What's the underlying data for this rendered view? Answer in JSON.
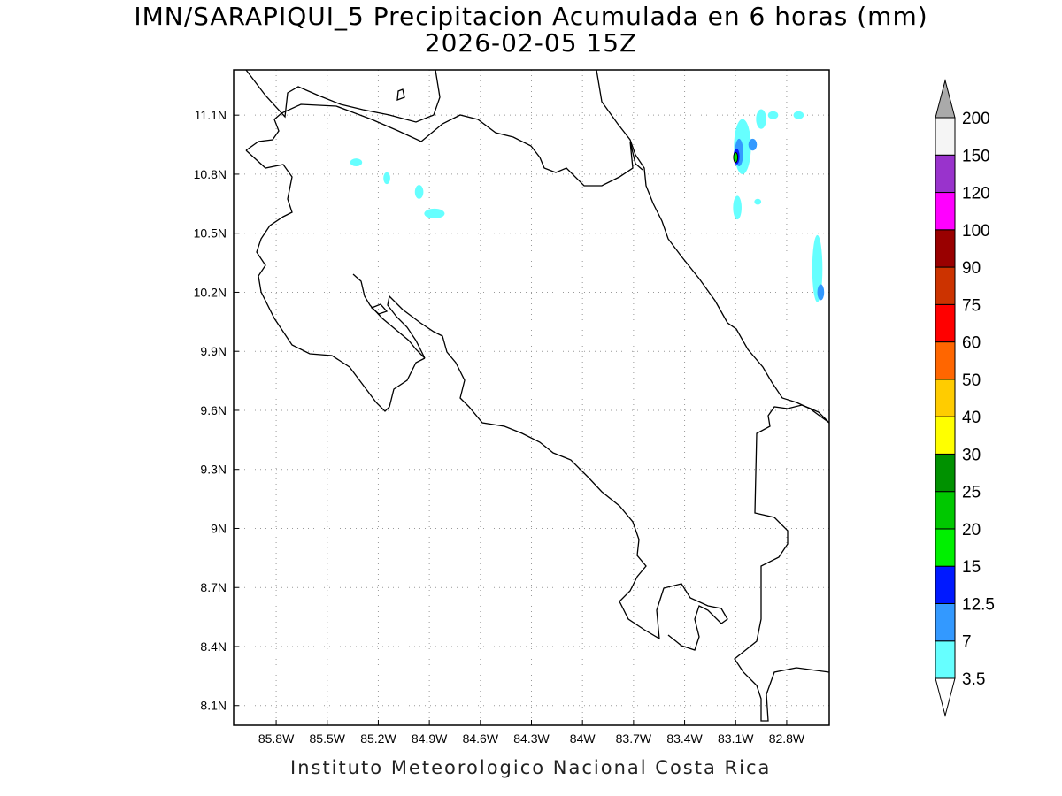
{
  "title": {
    "line1": "IMN/SARAPIQUI_5 Precipitacion Acumulada en 6 horas (mm)",
    "line2": "2026-02-05 15Z"
  },
  "footer": "Instituto Meteorologico Nacional Costa Rica",
  "map": {
    "lon_range": [
      -86.05,
      -82.55
    ],
    "lat_range": [
      8.0,
      11.33
    ],
    "lon_ticks": [
      {
        "value": -85.8,
        "label": "85.8W"
      },
      {
        "value": -85.5,
        "label": "85.5W"
      },
      {
        "value": -85.2,
        "label": "85.2W"
      },
      {
        "value": -84.9,
        "label": "84.9W"
      },
      {
        "value": -84.6,
        "label": "84.6W"
      },
      {
        "value": -84.3,
        "label": "84.3W"
      },
      {
        "value": -84.0,
        "label": "84W"
      },
      {
        "value": -83.7,
        "label": "83.7W"
      },
      {
        "value": -83.4,
        "label": "83.4W"
      },
      {
        "value": -83.1,
        "label": "83.1W"
      },
      {
        "value": -82.8,
        "label": "82.8W"
      }
    ],
    "lat_ticks": [
      {
        "value": 11.1,
        "label": "11.1N"
      },
      {
        "value": 10.8,
        "label": "10.8N"
      },
      {
        "value": 10.5,
        "label": "10.5N"
      },
      {
        "value": 10.2,
        "label": "10.2N"
      },
      {
        "value": 9.9,
        "label": "9.9N"
      },
      {
        "value": 9.6,
        "label": "9.6N"
      },
      {
        "value": 9.3,
        "label": "9.3N"
      },
      {
        "value": 9.0,
        "label": "9N"
      },
      {
        "value": 8.7,
        "label": "8.7N"
      },
      {
        "value": 8.4,
        "label": "8.4N"
      },
      {
        "value": 8.1,
        "label": "8.1N"
      }
    ],
    "grid": true,
    "grid_style": "dotted",
    "precip_areas": [
      {
        "level": "3.5",
        "lon": -85.33,
        "lat": 10.86,
        "rlon": 0.035,
        "rlat": 0.02
      },
      {
        "level": "3.5",
        "lon": -85.15,
        "lat": 10.78,
        "rlon": 0.02,
        "rlat": 0.03
      },
      {
        "level": "3.5",
        "lon": -84.96,
        "lat": 10.71,
        "rlon": 0.025,
        "rlat": 0.035
      },
      {
        "level": "3.5",
        "lon": -84.87,
        "lat": 10.6,
        "rlon": 0.06,
        "rlat": 0.025
      },
      {
        "level": "3.5",
        "lon": -83.06,
        "lat": 10.94,
        "rlon": 0.05,
        "rlat": 0.14
      },
      {
        "level": "3.5",
        "lon": -82.95,
        "lat": 11.08,
        "rlon": 0.03,
        "rlat": 0.05
      },
      {
        "level": "3.5",
        "lon": -82.88,
        "lat": 11.1,
        "rlon": 0.03,
        "rlat": 0.02
      },
      {
        "level": "3.5",
        "lon": -82.73,
        "lat": 11.1,
        "rlon": 0.03,
        "rlat": 0.02
      },
      {
        "level": "3.5",
        "lon": -83.09,
        "lat": 10.63,
        "rlon": 0.025,
        "rlat": 0.06
      },
      {
        "level": "3.5",
        "lon": -82.97,
        "lat": 10.66,
        "rlon": 0.02,
        "rlat": 0.015
      },
      {
        "level": "3.5",
        "lon": -82.62,
        "lat": 10.32,
        "rlon": 0.03,
        "rlat": 0.17
      },
      {
        "level": "7",
        "lon": -83.08,
        "lat": 10.91,
        "rlon": 0.025,
        "rlat": 0.07
      },
      {
        "level": "7",
        "lon": -83.0,
        "lat": 10.95,
        "rlon": 0.025,
        "rlat": 0.03
      },
      {
        "level": "7",
        "lon": -82.6,
        "lat": 10.2,
        "rlon": 0.02,
        "rlat": 0.04
      },
      {
        "level": "12.5",
        "lon": -83.095,
        "lat": 10.89,
        "rlon": 0.018,
        "rlat": 0.04
      },
      {
        "level": "15",
        "lon": -83.1,
        "lat": 10.885,
        "rlon": 0.012,
        "rlat": 0.025
      }
    ]
  },
  "colorbar": {
    "levels": [
      {
        "label": "3.5",
        "color": "#66ffff"
      },
      {
        "label": "7",
        "color": "#3399ff"
      },
      {
        "label": "12.5",
        "color": "#0019ff"
      },
      {
        "label": "15",
        "color": "#00f000"
      },
      {
        "label": "20",
        "color": "#00c800"
      },
      {
        "label": "25",
        "color": "#009100"
      },
      {
        "label": "30",
        "color": "#ffff00"
      },
      {
        "label": "40",
        "color": "#ffcc00"
      },
      {
        "label": "50",
        "color": "#ff6600"
      },
      {
        "label": "60",
        "color": "#ff0000"
      },
      {
        "label": "75",
        "color": "#cc3300"
      },
      {
        "label": "90",
        "color": "#990000"
      },
      {
        "label": "100",
        "color": "#ff00ff"
      },
      {
        "label": "120",
        "color": "#9933cc"
      },
      {
        "label": "150",
        "color": "#f5f5f5"
      },
      {
        "label": "200",
        "color": "#aaaaaa"
      }
    ],
    "below_arrow_color": "#ffffff",
    "above_arrow_color": "#aaaaaa"
  }
}
